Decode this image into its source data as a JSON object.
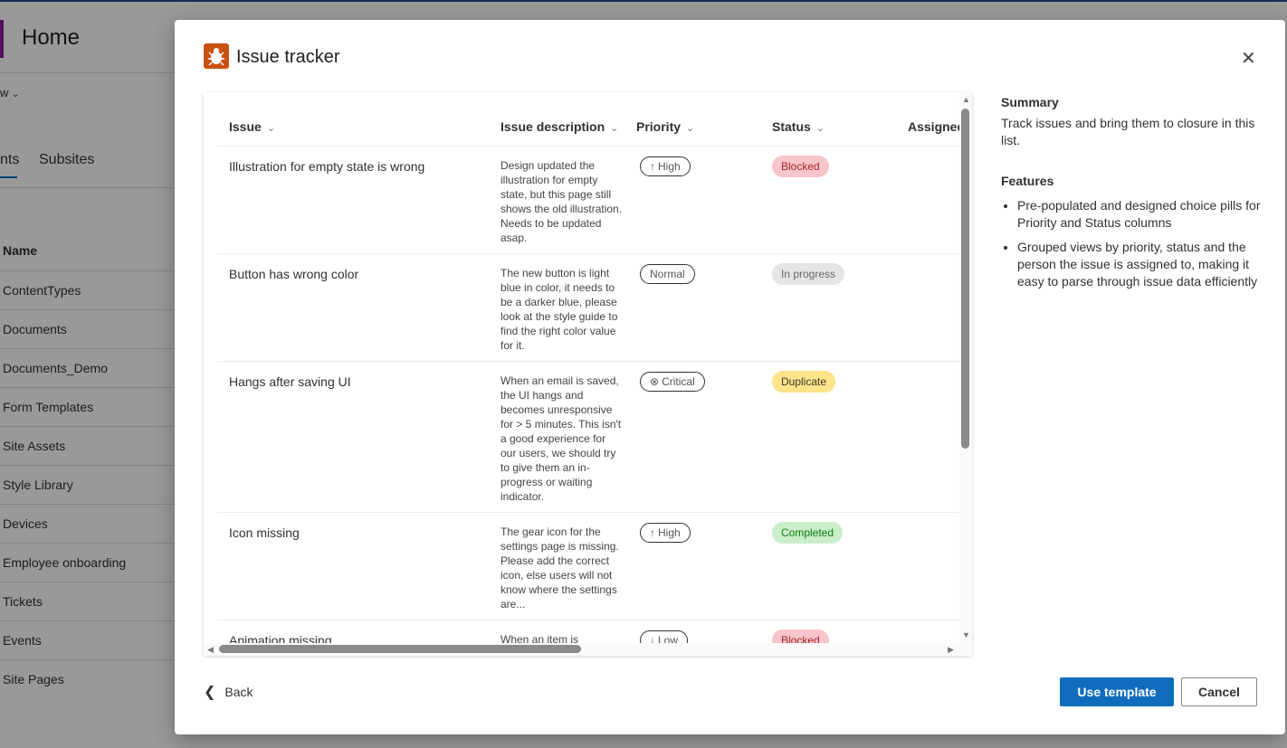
{
  "background": {
    "page_title": "Home",
    "new_label": "w",
    "tabs": [
      "nts",
      "Subsites"
    ],
    "name_header": "Name",
    "sites": [
      "ContentTypes",
      "Documents",
      "Documents_Demo",
      "Form Templates",
      "Site Assets",
      "Style Library",
      "Devices",
      "Employee onboarding",
      "Tickets",
      "Events",
      "Site Pages"
    ]
  },
  "modal": {
    "title": "Issue tracker",
    "icon": "bug-icon",
    "accent_color": "#ca5010",
    "columns": [
      "Issue",
      "Issue description",
      "Priority",
      "Status",
      "Assigned"
    ],
    "rows": [
      {
        "issue": "Illustration for empty state is wrong",
        "description": "Design updated the illustration for empty state, but this page still shows the old illustration. Needs to be updated asap.",
        "priority": "High",
        "priority_icon": "↑",
        "status": "Blocked",
        "status_bg": "#f8c5c9",
        "status_fg": "#a4262c"
      },
      {
        "issue": "Button has wrong color",
        "description": "The new button is light blue in color, it needs to be a darker blue, please look at the style guide to find the right color value for it.",
        "priority": "Normal",
        "priority_icon": "",
        "status": "In progress",
        "status_bg": "#e5e5e5",
        "status_fg": "#666666"
      },
      {
        "issue": "Hangs after saving UI",
        "description": "When an email is saved, the UI hangs and becomes unresponsive for > 5 minutes. This isn't a good experience for our users, we should try to give them an in-progress or waiting indicator.",
        "priority": "Critical",
        "priority_icon": "⊗",
        "status": "Duplicate",
        "status_bg": "#fde38a",
        "status_fg": "#3b3a24"
      },
      {
        "issue": "Icon missing",
        "description": "The gear icon for the settings page is missing. Please add the correct icon, else users will not know where the settings are...",
        "priority": "High",
        "priority_icon": "↑",
        "status": "Completed",
        "status_bg": "#c9eec9",
        "status_fg": "#107c10"
      },
      {
        "issue": "Animation missing",
        "description": "When an item is",
        "priority": "Low",
        "priority_icon": "↓",
        "status": "Blocked",
        "status_bg": "#f8c5c9",
        "status_fg": "#a4262c"
      }
    ],
    "summary_heading": "Summary",
    "summary_text": "Track issues and bring them to closure in this list.",
    "features_heading": "Features",
    "features": [
      "Pre-populated and designed choice pills for Priority and Status columns",
      "Grouped views by priority, status and the person the issue is assigned to, making it easy to parse through issue data efficiently"
    ],
    "back_label": "Back",
    "use_template_label": "Use template",
    "cancel_label": "Cancel"
  }
}
